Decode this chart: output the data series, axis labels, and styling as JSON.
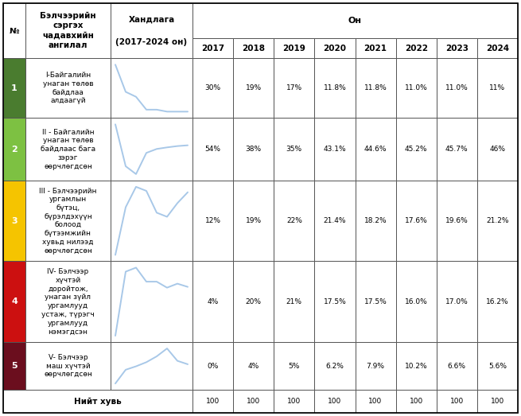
{
  "years": [
    "2017",
    "2018",
    "2019",
    "2020",
    "2021",
    "2022",
    "2023",
    "2024"
  ],
  "rows": [
    {
      "num": "1",
      "label": "I-Байгалийн\nунаган төлөв\nбайдлаа\nалдаагүй",
      "color": "#4a7c2f",
      "values": [
        30,
        19,
        17,
        11.8,
        11.8,
        11.0,
        11.0,
        11
      ],
      "labels": [
        "30%",
        "19%",
        "17%",
        "11.8%",
        "11.8%",
        "11.0%",
        "11.0%",
        "11%"
      ]
    },
    {
      "num": "2",
      "label": "II - Байгалийн\nунаган төлөв\nбайдлаас бага\nзэрэг\nөөрчлөгдсөн",
      "color": "#7dc142",
      "values": [
        54,
        38,
        35,
        43.1,
        44.6,
        45.2,
        45.7,
        46
      ],
      "labels": [
        "54%",
        "38%",
        "35%",
        "43.1%",
        "44.6%",
        "45.2%",
        "45.7%",
        "46%"
      ]
    },
    {
      "num": "3",
      "label": "III - Бэлчээрийн\nургамлын\nбүтэц,\nбүрэлдэхүүн\nболоод\nбүтээмжийн\nхувьд нилээд\nөөрчлөгдсөн",
      "color": "#f5c400",
      "values": [
        12,
        19,
        22,
        21.4,
        18.2,
        17.6,
        19.6,
        21.2
      ],
      "labels": [
        "12%",
        "19%",
        "22%",
        "21.4%",
        "18.2%",
        "17.6%",
        "19.6%",
        "21.2%"
      ]
    },
    {
      "num": "4",
      "label": "IV- Бэлчээр\nхүчтэй\nдоройтож,\nунаган зүйл\nургамлууд\nустаж, түрэгч\nургамлууд\nнэмэгдсэн",
      "color": "#cc1010",
      "values": [
        4,
        20,
        21,
        17.5,
        17.5,
        16.0,
        17.0,
        16.2
      ],
      "labels": [
        "4%",
        "20%",
        "21%",
        "17.5%",
        "17.5%",
        "16.0%",
        "17.0%",
        "16.2%"
      ]
    },
    {
      "num": "5",
      "label": "V- Бэлчээр\nмаш хүчтэй\nөөрчлөгдсөн",
      "color": "#6b0e1e",
      "values": [
        0,
        4,
        5,
        6.2,
        7.9,
        10.2,
        6.6,
        5.6
      ],
      "labels": [
        "0%",
        "4%",
        "5%",
        "6.2%",
        "7.9%",
        "10.2%",
        "6.6%",
        "5.6%"
      ]
    }
  ],
  "footer_label": "Нийт хувь",
  "footer_values": [
    "100",
    "100",
    "100",
    "100",
    "100",
    "100",
    "100",
    "100"
  ],
  "line_color": "#a8c8e8",
  "font_size": 6.5,
  "header_font_size": 7.5,
  "num_font_size": 8.0
}
